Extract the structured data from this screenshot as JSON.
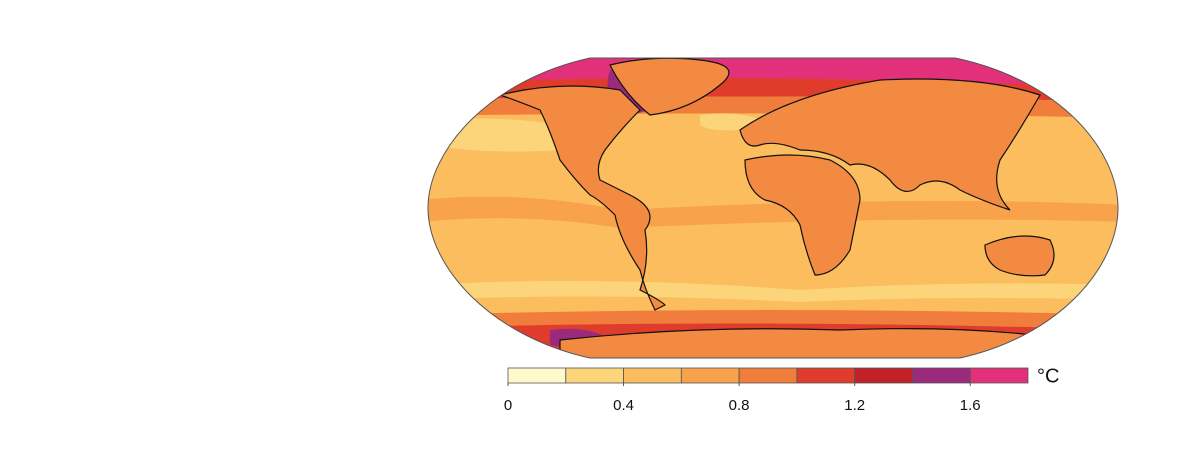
{
  "map": {
    "colorbar": {
      "unit": "°C",
      "range": [
        0,
        1.8
      ],
      "ticks": [
        0,
        0.4,
        0.8,
        1.2,
        1.6
      ],
      "bounds": [
        0,
        0.2,
        0.4,
        0.6,
        0.8,
        1.0,
        1.2,
        1.4,
        1.6,
        1.8
      ],
      "colors": [
        "#fffacd",
        "#fcd57a",
        "#fbbd5e",
        "#f8a24b",
        "#f17d3c",
        "#e03c2c",
        "#c32129",
        "#9c2a7c",
        "#e2317a"
      ]
    }
  }
}
